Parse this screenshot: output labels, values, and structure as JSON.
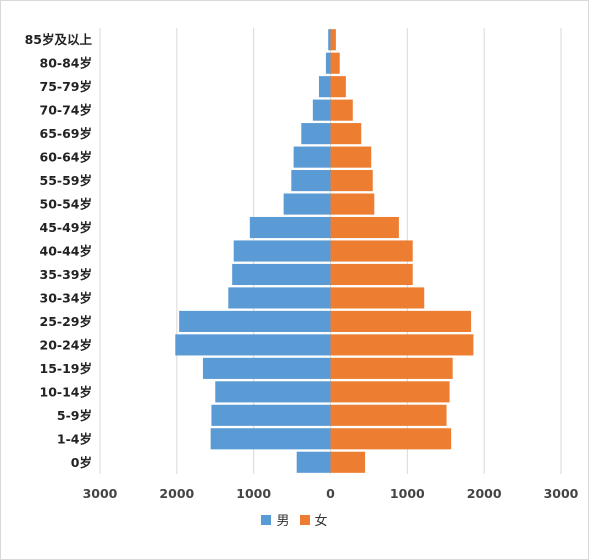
{
  "chart_data": {
    "type": "bar",
    "orientation": "horizontal",
    "categories": [
      "85岁及以上",
      "80-84岁",
      "75-79岁",
      "70-74岁",
      "65-69岁",
      "60-64岁",
      "55-59岁",
      "50-54岁",
      "45-49岁",
      "40-44岁",
      "35-39岁",
      "30-34岁",
      "25-29岁",
      "20-24岁",
      "15-19岁",
      "10-14岁",
      "5-9岁",
      "1-4岁",
      "0岁"
    ],
    "series": [
      {
        "name": "男",
        "color": "#5B9BD5",
        "values": [
          30,
          60,
          150,
          230,
          380,
          480,
          510,
          610,
          1050,
          1260,
          1280,
          1330,
          1970,
          2020,
          1660,
          1500,
          1550,
          1560,
          440
        ]
      },
      {
        "name": "女",
        "color": "#ED7D31",
        "values": [
          70,
          120,
          200,
          290,
          400,
          530,
          550,
          570,
          890,
          1070,
          1070,
          1220,
          1830,
          1860,
          1590,
          1550,
          1510,
          1570,
          450
        ]
      }
    ],
    "xlim": [
      -3000,
      3000
    ],
    "xticks": [
      -3000,
      -2000,
      -1000,
      0,
      1000,
      2000,
      3000
    ],
    "xtick_labels": [
      "3000",
      "2000",
      "1000",
      "0",
      "1000",
      "2000",
      "3000"
    ],
    "grid": "vertical",
    "legend_position": "bottom"
  }
}
